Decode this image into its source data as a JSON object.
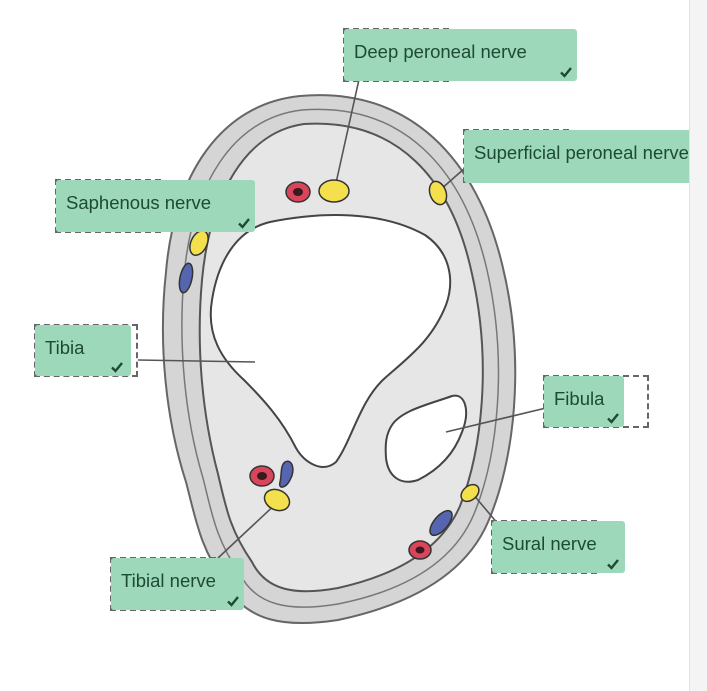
{
  "labels": {
    "deep_peroneal": "Deep peroneal nerve",
    "superficial_peroneal": "Superficial peroneal nerve",
    "saphenous": "Saphenous nerve",
    "tibia": "Tibia",
    "fibula": "Fibula",
    "sural": "Sural nerve",
    "tibial": "Tibial nerve"
  },
  "colors": {
    "label_bg": "#9cd8b9",
    "label_text": "#1e4a35",
    "nerve": "#f4e04d",
    "artery": "#d9455a",
    "vein": "#5565b0",
    "tissue": "#e4e4e4",
    "skin": "#d3d3d3",
    "bone": "#ffffff"
  },
  "icons": {
    "correct": "check-icon"
  }
}
